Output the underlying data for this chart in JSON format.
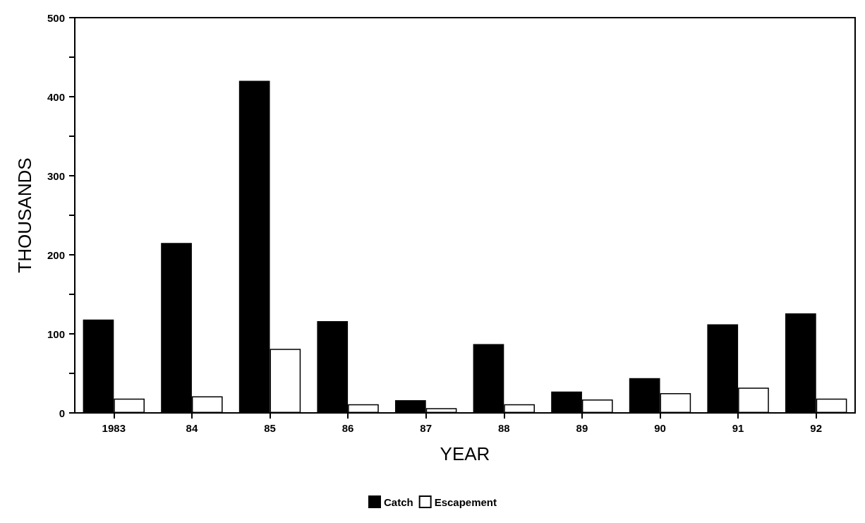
{
  "chart_data": {
    "type": "bar",
    "xlabel": "YEAR",
    "ylabel": "THOUSANDS",
    "categories": [
      "1983",
      "84",
      "85",
      "86",
      "87",
      "88",
      "89",
      "90",
      "91",
      "92"
    ],
    "series": [
      {
        "name": "Catch",
        "color": "#000000",
        "values": [
          118,
          215,
          420,
          116,
          16,
          87,
          27,
          44,
          112,
          126
        ]
      },
      {
        "name": "Escapement",
        "color": "#ffffff",
        "values": [
          18,
          21,
          81,
          11,
          6,
          11,
          17,
          25,
          32,
          18
        ]
      }
    ],
    "ylim": [
      0,
      500
    ],
    "yticks": [
      0,
      {
        "value": 50,
        "label": null
      },
      100,
      {
        "value": 150,
        "label": null
      },
      200,
      {
        "value": 250,
        "label": null
      },
      300,
      {
        "value": 350,
        "label": null
      },
      400,
      {
        "value": 450,
        "label": null
      },
      500
    ],
    "grid": false,
    "legend": "bottom"
  }
}
